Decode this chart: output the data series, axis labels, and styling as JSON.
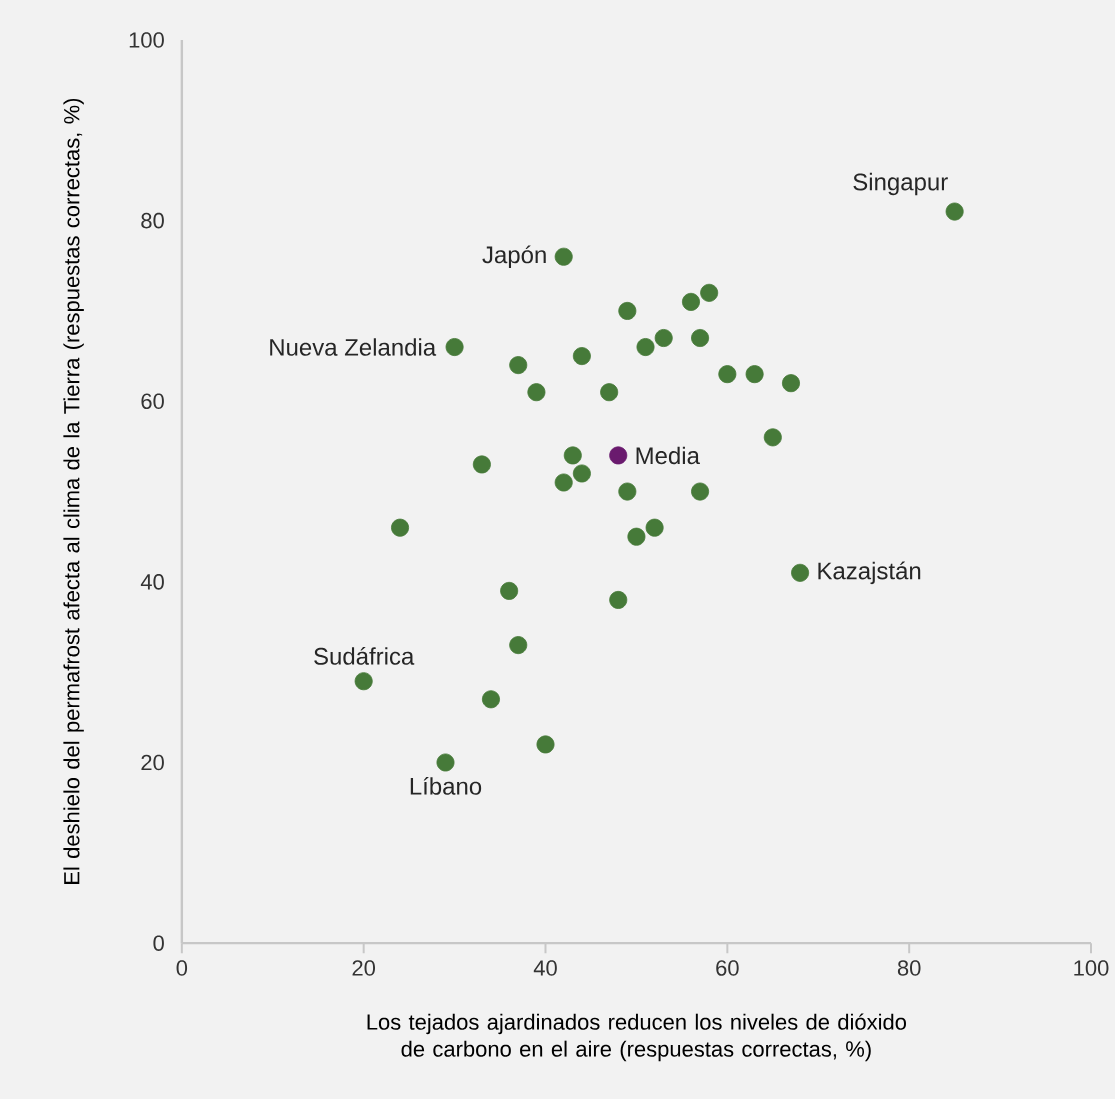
{
  "chart_data": {
    "type": "scatter",
    "xlabel": "Los tejados ajardinados reducen los niveles de dióxido de carbono en el aire (respuestas correctas, %)",
    "ylabel": "El deshielo del permafrost afecta al clima de la Tierra (respuestas correctas, %)",
    "xlim": [
      0,
      100
    ],
    "ylim": [
      0,
      100
    ],
    "xticks": [
      0,
      20,
      40,
      60,
      80,
      100
    ],
    "yticks": [
      0,
      20,
      40,
      60,
      80,
      100
    ],
    "grid": false,
    "marker": "circle",
    "series": [
      {
        "color": "#467a39",
        "x": [
          85,
          42,
          30,
          49,
          56,
          58,
          57,
          53,
          51,
          44,
          37,
          39,
          47,
          60,
          63,
          67,
          65,
          33,
          43,
          44,
          42,
          49,
          57,
          24,
          50,
          52,
          68,
          36,
          48,
          37,
          20,
          34,
          29,
          40
        ],
        "values": [
          81,
          76,
          66,
          70,
          71,
          72,
          67,
          67,
          66,
          65,
          64,
          61,
          61,
          63,
          63,
          62,
          56,
          53,
          54,
          52,
          51,
          50,
          50,
          46,
          45,
          46,
          41,
          39,
          38,
          33,
          29,
          27,
          20,
          22
        ]
      },
      {
        "color": "#6a1a6e",
        "x": [
          48
        ],
        "values": [
          54
        ]
      }
    ],
    "annotations": [
      {
        "text": "Singapur",
        "x": 85,
        "y": 81
      },
      {
        "text": "Japón",
        "x": 42,
        "y": 76
      },
      {
        "text": "Nueva Zelandia",
        "x": 30,
        "y": 66
      },
      {
        "text": "Media",
        "x": 48,
        "y": 54
      },
      {
        "text": "Kazajstán",
        "x": 68,
        "y": 41
      },
      {
        "text": "Sudáfrica",
        "x": 20,
        "y": 29
      },
      {
        "text": "Líbano",
        "x": 29,
        "y": 20
      }
    ]
  }
}
